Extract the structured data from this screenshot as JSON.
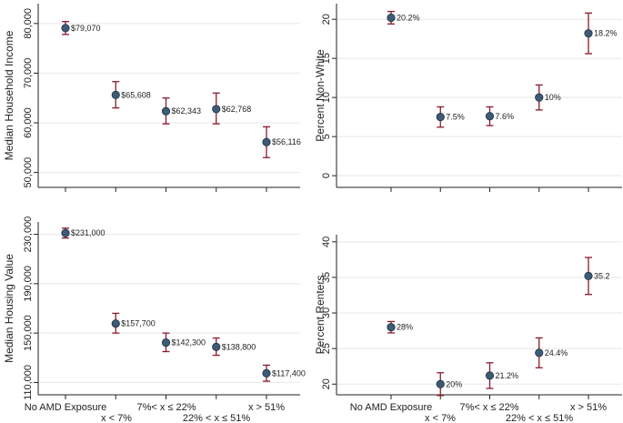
{
  "chart_data": [
    {
      "id": "income",
      "type": "scatter",
      "ylabel": "Median Household Income",
      "ylim": [
        47000,
        84000
      ],
      "yticks": [
        50000,
        60000,
        70000,
        80000
      ],
      "ytick_labels": [
        "50,000",
        "60,000",
        "70,000",
        "80,000"
      ],
      "grid": true,
      "x": [
        1,
        2,
        3,
        4,
        5
      ],
      "values": [
        79070,
        65608,
        62343,
        62768,
        56116
      ],
      "lower": [
        77800,
        63000,
        59800,
        59800,
        53000
      ],
      "upper": [
        80400,
        68300,
        65000,
        66000,
        59200
      ],
      "point_labels": [
        "$79,070",
        "$65,608",
        "$62,343",
        "$62,768",
        "$56,116"
      ]
    },
    {
      "id": "nonwhite",
      "type": "scatter",
      "ylabel": "Percent Non-White",
      "ylim": [
        -1.5,
        22
      ],
      "yticks": [
        0,
        5,
        10,
        15,
        20
      ],
      "ytick_labels": [
        "0",
        "5",
        "10",
        "15",
        "20"
      ],
      "grid": true,
      "x": [
        1,
        2,
        3,
        4,
        5
      ],
      "values": [
        20.2,
        7.5,
        7.6,
        10,
        18.2
      ],
      "lower": [
        19.4,
        6.2,
        6.4,
        8.4,
        15.6
      ],
      "upper": [
        21.0,
        8.8,
        8.8,
        11.6,
        20.8
      ],
      "point_labels": [
        "20.2%",
        "7.5%",
        "7.6%",
        "10%",
        "18.2%"
      ]
    },
    {
      "id": "housing",
      "type": "scatter",
      "ylabel": "Median Housing Value",
      "ylim": [
        100000,
        240000
      ],
      "yticks": [
        110000,
        150000,
        190000,
        230000
      ],
      "ytick_labels": [
        "110,000",
        "150,000",
        "190,000",
        "230,000"
      ],
      "grid": true,
      "x": [
        1,
        2,
        3,
        4,
        5
      ],
      "values": [
        231000,
        157700,
        142300,
        138800,
        117400
      ],
      "lower": [
        227000,
        150000,
        135000,
        132000,
        111000
      ],
      "upper": [
        235000,
        166000,
        150000,
        146000,
        124000
      ],
      "point_labels": [
        "$231,000",
        "$157,700",
        "$142,300",
        "$138,800",
        "$117,400"
      ]
    },
    {
      "id": "renters",
      "type": "scatter",
      "ylabel": "Percent Renters",
      "ylim": [
        18.5,
        41
      ],
      "yticks": [
        20,
        25,
        30,
        35,
        40
      ],
      "ytick_labels": [
        "20",
        "25",
        "30",
        "35",
        "40"
      ],
      "grid": true,
      "x": [
        1,
        2,
        3,
        4,
        5
      ],
      "values": [
        28,
        20,
        21.2,
        24.4,
        35.2
      ],
      "lower": [
        27.2,
        18.4,
        19.4,
        22.3,
        32.6
      ],
      "upper": [
        28.8,
        21.6,
        23.0,
        26.5,
        37.8
      ],
      "point_labels": [
        "28%",
        "20%",
        "21.2%",
        "24.4%",
        "35.2"
      ]
    }
  ],
  "x_categories_row1": [
    "No AMD Exposure",
    "7%< x ≤ 22%",
    "x > 51%"
  ],
  "x_categories_row2": [
    "x < 7%",
    "22% < x ≤ 51%"
  ],
  "colors": {
    "point": "#3e5a74",
    "error_bar": "#8b1a2b",
    "grid": "#e8e8e8",
    "axis": "#222222"
  }
}
